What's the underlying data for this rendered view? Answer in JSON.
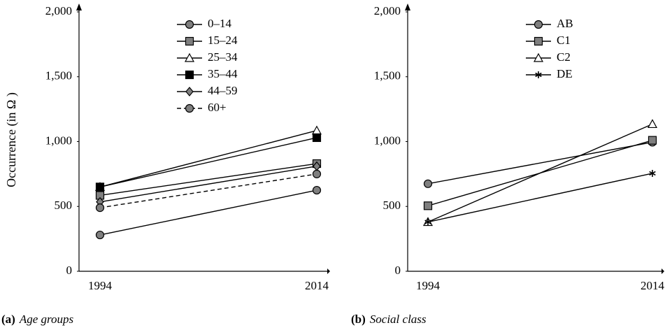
{
  "chart_data": [
    {
      "type": "line",
      "caption_label": "(a)",
      "caption": "Age groups",
      "y_label": "Occurrence (in Ω )",
      "categories": [
        "1994",
        "2014"
      ],
      "ylim": [
        0,
        2000
      ],
      "yticks": [
        0,
        500,
        {
          "value": 1000,
          "label": "1,000"
        },
        {
          "value": 1500,
          "label": "1,500"
        },
        {
          "value": 2000,
          "label": "2,000"
        }
      ],
      "legend": "upper center",
      "series": [
        {
          "name": "0–14",
          "color": "#7f7f7f",
          "marker": "circle",
          "dashed": false,
          "values": [
            280,
            625
          ]
        },
        {
          "name": "15–24",
          "color": "#7f7f7f",
          "marker": "square",
          "dashed": false,
          "values": [
            585,
            830
          ]
        },
        {
          "name": "25–34",
          "color": "#ffffff",
          "marker": "triangle",
          "dashed": false,
          "values": [
            650,
            1085
          ]
        },
        {
          "name": "35–44",
          "color": "#000000",
          "marker": "square",
          "dashed": false,
          "values": [
            650,
            1030
          ]
        },
        {
          "name": "44–59",
          "color": "#7f7f7f",
          "marker": "diamond",
          "dashed": false,
          "values": [
            535,
            810
          ]
        },
        {
          "name": "60+",
          "color": "#7f7f7f",
          "marker": "circle",
          "dashed": true,
          "values": [
            490,
            750
          ]
        }
      ]
    },
    {
      "type": "line",
      "caption_label": "(b)",
      "caption": "Social class",
      "categories": [
        "1994",
        "2014"
      ],
      "ylim": [
        0,
        2000
      ],
      "yticks": [
        0,
        500,
        {
          "value": 1000,
          "label": "1,000"
        },
        {
          "value": 1500,
          "label": "1,500"
        },
        {
          "value": 2000,
          "label": "2,000"
        }
      ],
      "legend": "upper center",
      "series": [
        {
          "name": "AB",
          "color": "#7f7f7f",
          "marker": "circle",
          "dashed": false,
          "values": [
            675,
            995
          ]
        },
        {
          "name": "C1",
          "color": "#7f7f7f",
          "marker": "square",
          "dashed": false,
          "values": [
            505,
            1010
          ]
        },
        {
          "name": "C2",
          "color": "#ffffff",
          "marker": "triangle",
          "dashed": false,
          "values": [
            380,
            1135
          ]
        },
        {
          "name": "DE",
          "color": "#000000",
          "marker": "star",
          "dashed": false,
          "values": [
            380,
            755
          ]
        }
      ]
    }
  ]
}
